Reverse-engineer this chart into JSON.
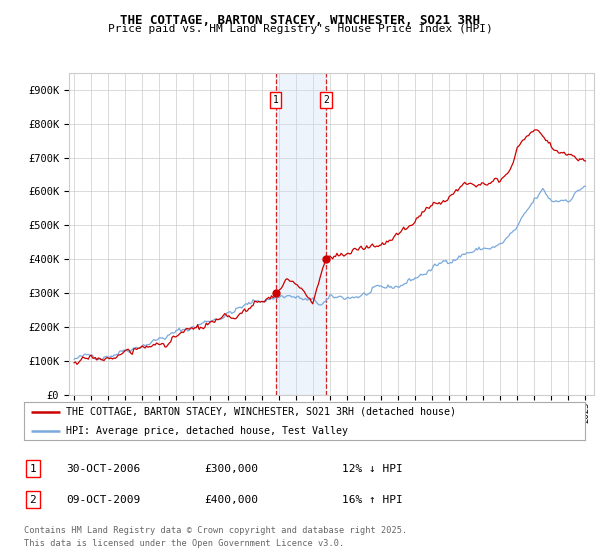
{
  "title_line1": "THE COTTAGE, BARTON STACEY, WINCHESTER, SO21 3RH",
  "title_line2": "Price paid vs. HM Land Registry's House Price Index (HPI)",
  "ylabel_ticks": [
    "£0",
    "£100K",
    "£200K",
    "£300K",
    "£400K",
    "£500K",
    "£600K",
    "£700K",
    "£800K",
    "£900K"
  ],
  "ytick_values": [
    0,
    100000,
    200000,
    300000,
    400000,
    500000,
    600000,
    700000,
    800000,
    900000
  ],
  "ylim": [
    0,
    950000
  ],
  "xlim_start": 1994.7,
  "xlim_end": 2025.5,
  "xtick_years": [
    1995,
    1996,
    1997,
    1998,
    1999,
    2000,
    2001,
    2002,
    2003,
    2004,
    2005,
    2006,
    2007,
    2008,
    2009,
    2010,
    2011,
    2012,
    2013,
    2014,
    2015,
    2016,
    2017,
    2018,
    2019,
    2020,
    2021,
    2022,
    2023,
    2024,
    2025
  ],
  "transaction1_x": 2006.83,
  "transaction1_y": 300000,
  "transaction1_label": "1",
  "transaction1_date": "30-OCT-2006",
  "transaction1_price": "£300,000",
  "transaction1_hpi": "12% ↓ HPI",
  "transaction2_x": 2009.77,
  "transaction2_y": 400000,
  "transaction2_label": "2",
  "transaction2_date": "09-OCT-2009",
  "transaction2_price": "£400,000",
  "transaction2_hpi": "16% ↑ HPI",
  "legend_line1": "THE COTTAGE, BARTON STACEY, WINCHESTER, SO21 3RH (detached house)",
  "legend_line2": "HPI: Average price, detached house, Test Valley",
  "footer_line1": "Contains HM Land Registry data © Crown copyright and database right 2025.",
  "footer_line2": "This data is licensed under the Open Government Licence v3.0.",
  "red_color": "#cc0000",
  "blue_color": "#7aaadd",
  "shade_color": "#cce0f5",
  "bg_color": "#ffffff",
  "grid_color": "#cccccc"
}
